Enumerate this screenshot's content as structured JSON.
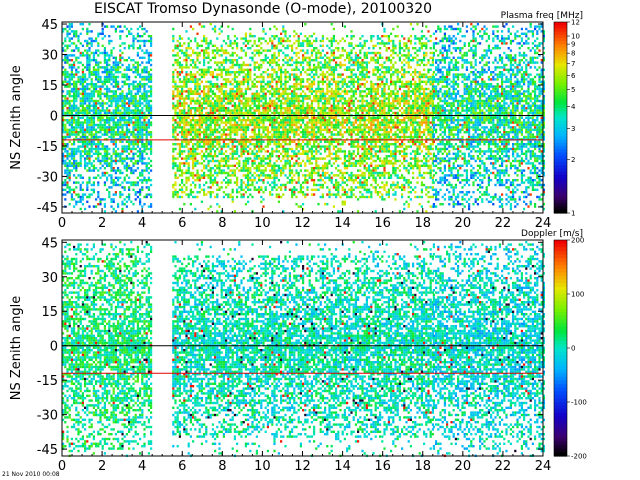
{
  "title": "EISCAT Tromso Dynasonde (O-mode),  20100320",
  "footer": "21 Nov 2010 00:08",
  "chart_data": [
    {
      "type": "heatmap",
      "ylabel": "NS Zenith angle",
      "xlim": [
        0,
        24
      ],
      "ylim": [
        -48,
        46
      ],
      "xticks": [
        0,
        2,
        4,
        6,
        8,
        10,
        12,
        14,
        16,
        18,
        20,
        22,
        24
      ],
      "yticks": [
        45,
        30,
        15,
        0,
        -15,
        -30,
        -45
      ],
      "reference_lines": [
        0,
        -12
      ],
      "colorbar": {
        "label": "Plasma freq [MHz]",
        "scale": "log",
        "range": [
          1,
          12
        ],
        "ticks": [
          12,
          10,
          9,
          8,
          7,
          6,
          5,
          4,
          3,
          2,
          1
        ]
      },
      "gaps": [
        [
          4.5,
          5.5
        ]
      ],
      "description_series": [
        {
          "x_range": [
            0,
            4.5
          ],
          "zenith_range": [
            -45,
            45
          ],
          "typical_value": 3.0
        },
        {
          "x_range": [
            5.5,
            18.5
          ],
          "zenith_range": [
            -40,
            40
          ],
          "typical_value": 4.5
        },
        {
          "x_range": [
            18.5,
            24
          ],
          "zenith_range": [
            -45,
            45
          ],
          "typical_value": 3.0
        }
      ]
    },
    {
      "type": "heatmap",
      "ylabel": "NS Zenith angle",
      "xlim": [
        0,
        24
      ],
      "ylim": [
        -48,
        46
      ],
      "xticks": [
        0,
        2,
        4,
        6,
        8,
        10,
        12,
        14,
        16,
        18,
        20,
        22,
        24
      ],
      "yticks": [
        45,
        30,
        15,
        0,
        -15,
        -30,
        -45
      ],
      "reference_lines": [
        0,
        -12
      ],
      "colorbar": {
        "label": "Doppler [m/s]",
        "scale": "linear",
        "range": [
          -200,
          200
        ],
        "ticks": [
          200,
          100,
          0,
          -100,
          -200
        ]
      },
      "gaps": [
        [
          4.5,
          5.5
        ]
      ],
      "description_series": [
        {
          "x_range": [
            0,
            4.5
          ],
          "zenith_range": [
            -45,
            45
          ],
          "typical_value": 20
        },
        {
          "x_range": [
            5.5,
            18.5
          ],
          "zenith_range": [
            -40,
            40
          ],
          "typical_value": 0
        },
        {
          "x_range": [
            18.5,
            24
          ],
          "zenith_range": [
            -45,
            45
          ],
          "typical_value": -10
        }
      ]
    }
  ]
}
